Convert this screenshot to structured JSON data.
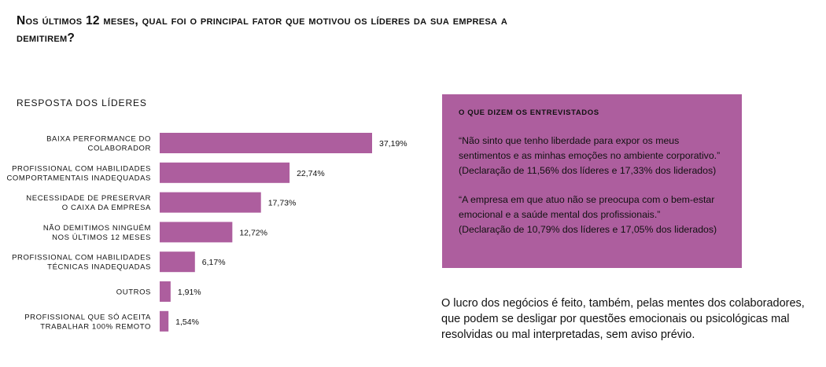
{
  "chart_data": {
    "type": "bar",
    "orientation": "horizontal",
    "title": "Nos últimos 12 meses, qual foi o principal fator que motivou os líderes da sua empresa a demitirem?",
    "subtitle": "Resposta dos líderes",
    "categories": [
      "Baixa performance do colaborador",
      "Profissional com habilidades comportamentais inadequadas",
      "Necessidade de preservar o caixa da empresa",
      "Não demitimos ninguém nos últimos 12 meses",
      "Profissional com habilidades técnicas inadequadas",
      "Outros",
      "Profissional que só aceita trabalhar 100% remoto"
    ],
    "category_lines": [
      [
        "Baixa performance do",
        "colaborador"
      ],
      [
        "Profissional com habilidades",
        "comportamentais inadequadas"
      ],
      [
        "Necessidade de preservar",
        "o caixa da empresa"
      ],
      [
        "Não demitimos ninguém",
        "nos últimos 12 meses"
      ],
      [
        "Profissional com habilidades",
        "técnicas inadequadas"
      ],
      [
        "Outros"
      ],
      [
        "Profissional que só aceita",
        "trabalhar 100% remoto"
      ]
    ],
    "values": [
      37.19,
      22.74,
      17.73,
      12.72,
      6.17,
      1.91,
      1.54
    ],
    "value_labels": [
      "37,19%",
      "22,74%",
      "17,73%",
      "12,72%",
      "6,17%",
      "1,91%",
      "1,54%"
    ],
    "unit": "%",
    "bar_color": "#ad5e9e",
    "grid": false,
    "legend": "none"
  },
  "quote_box": {
    "heading": "O que dizem os entrevistados",
    "quote1": "“Não sinto que tenho liberdade para expor os meus sentimentos e as minhas emoções no ambiente corporativo.”",
    "source1": "(Declaração de 11,56% dos líderes e 17,33% dos liderados)",
    "quote2": "“A empresa em que atuo não se preocupa com o bem-estar emocional e a saúde mental dos profissionais.”",
    "source2": "(Declaração de 10,79% dos líderes e 17,05% dos liderados)",
    "background_color": "#ad5e9e"
  },
  "footer_text": "O lucro dos negócios é feito, também, pelas mentes dos colaboradores, que podem se desligar por questões emocionais ou psicológicas mal resolvidas ou mal interpretadas, sem aviso prévio."
}
